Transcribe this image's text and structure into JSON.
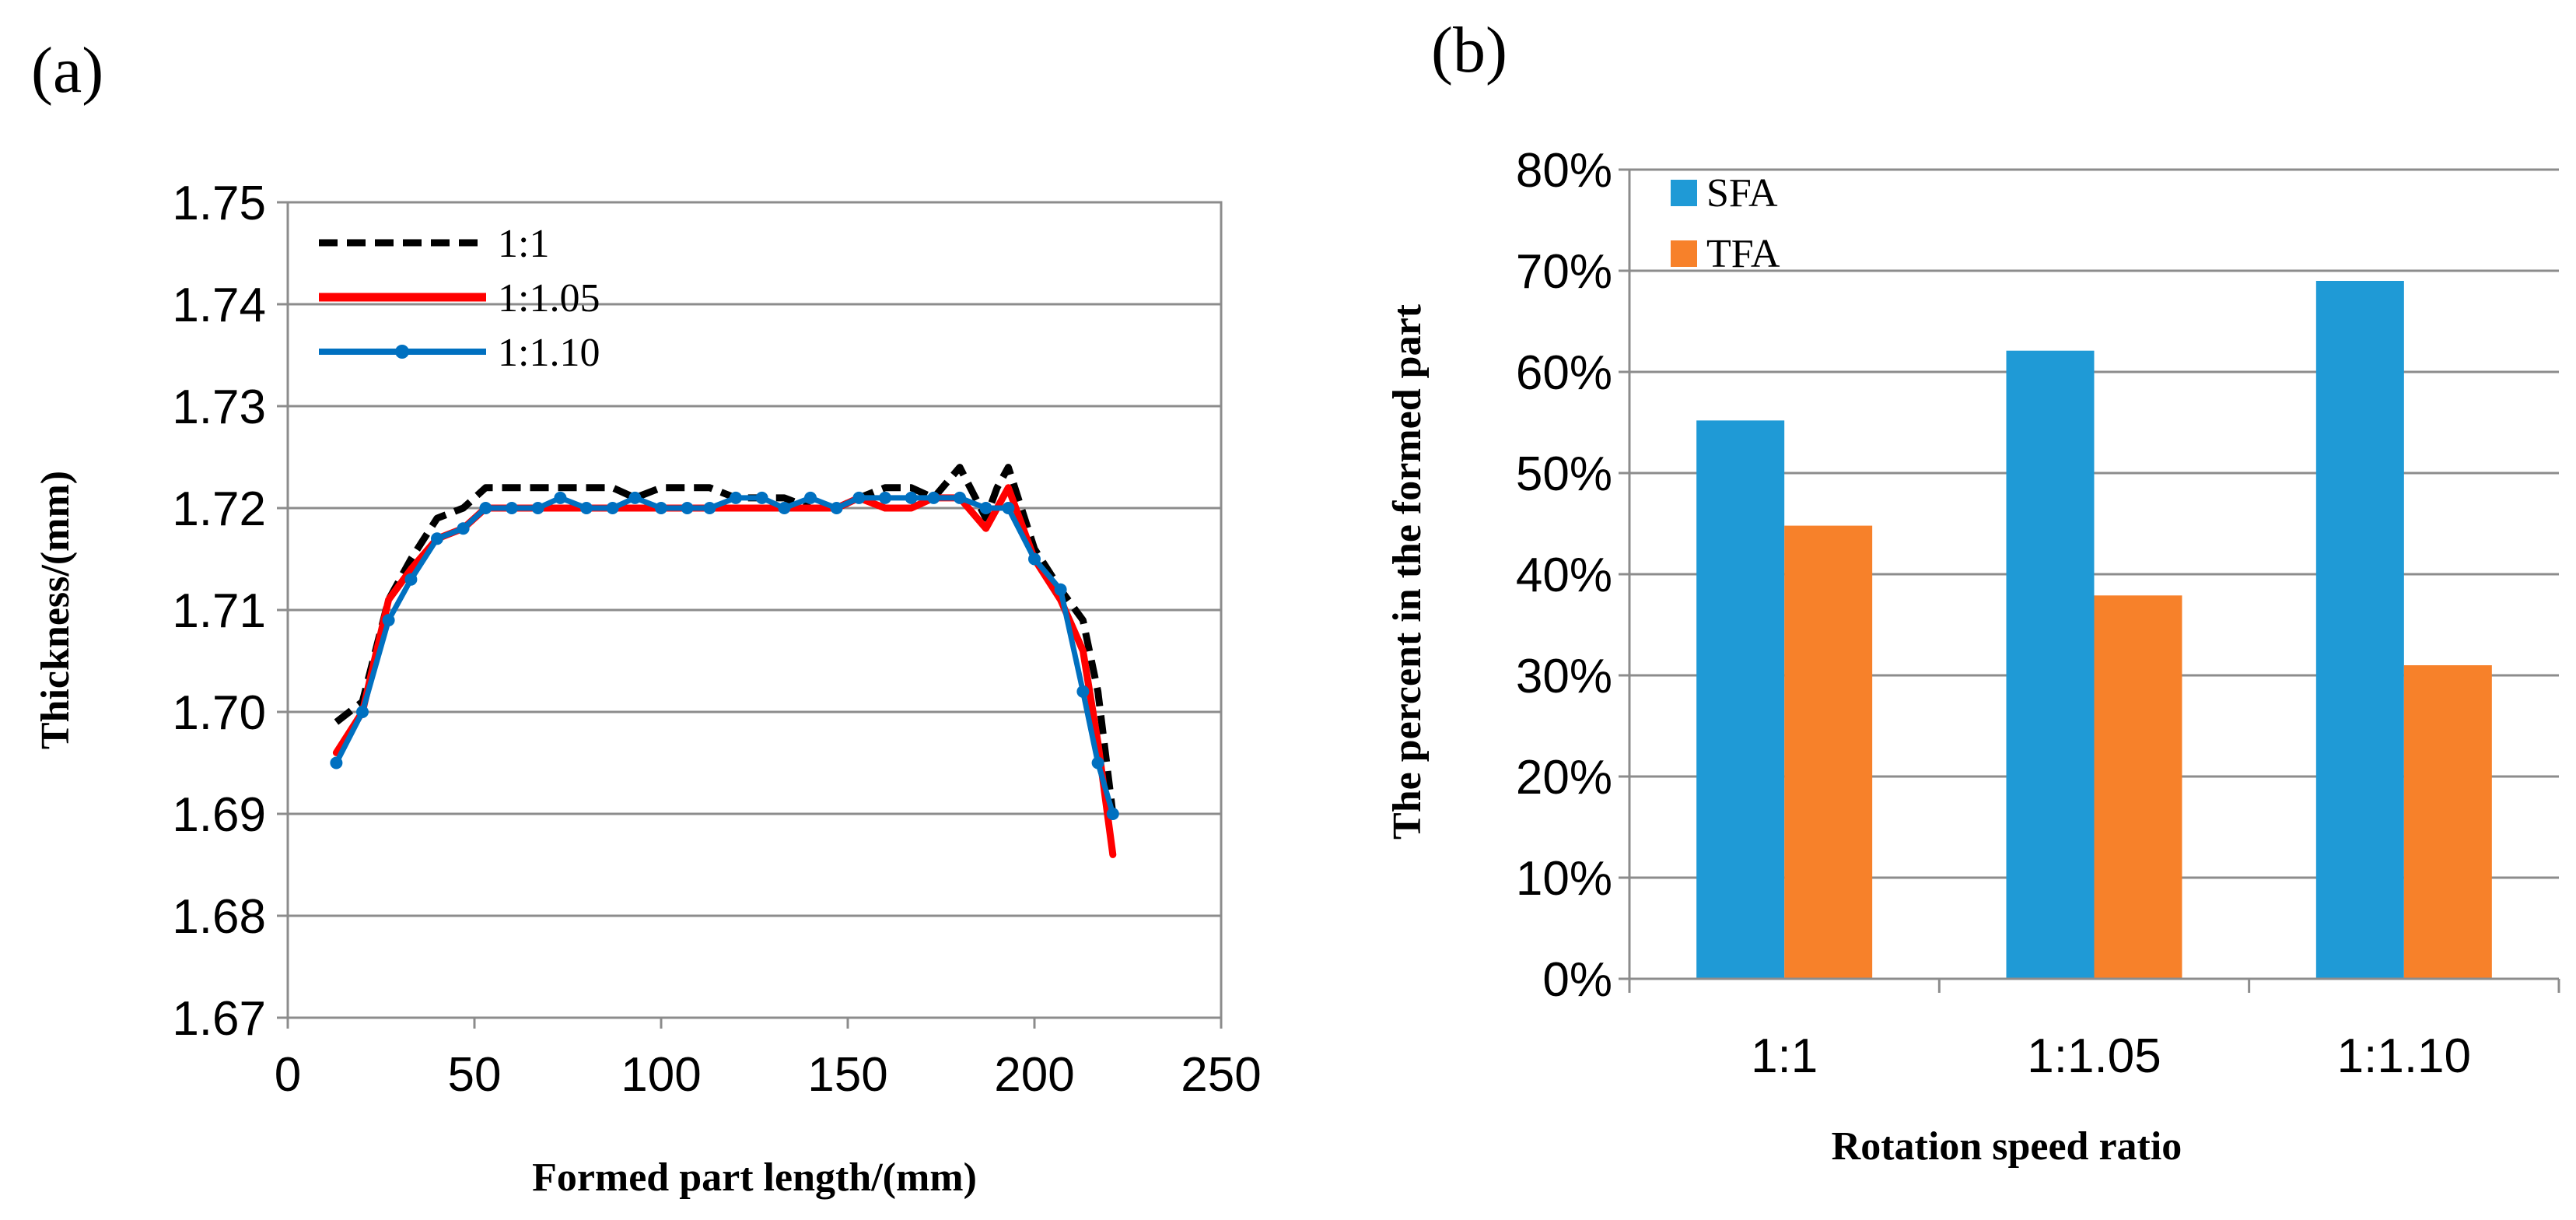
{
  "chart_data": [
    {
      "type": "line",
      "panel_label": "(a)",
      "xlabel": "Formed part length/(mm)",
      "ylabel": "Thickness/(mm)",
      "xlim": [
        0,
        250
      ],
      "ylim": [
        1.67,
        1.75
      ],
      "xticks": [
        "0",
        "50",
        "100",
        "150",
        "200",
        "250"
      ],
      "yticks": [
        "1.67",
        "1.68",
        "1.69",
        "1.70",
        "1.71",
        "1.72",
        "1.73",
        "1.74",
        "1.75"
      ],
      "grid": "horizontal",
      "legend_position": "top-left",
      "series": [
        {
          "name": "1:1",
          "color": "#000000",
          "style": "dashed",
          "x": [
            13,
            20,
            27,
            33,
            40,
            47,
            53,
            60,
            67,
            73,
            80,
            87,
            93,
            100,
            107,
            113,
            120,
            127,
            133,
            140,
            147,
            153,
            160,
            167,
            173,
            180,
            187,
            190,
            193,
            200,
            207,
            213,
            217,
            221
          ],
          "y": [
            1.699,
            1.701,
            1.711,
            1.715,
            1.719,
            1.72,
            1.722,
            1.722,
            1.722,
            1.722,
            1.722,
            1.722,
            1.721,
            1.722,
            1.722,
            1.722,
            1.721,
            1.721,
            1.721,
            1.72,
            1.72,
            1.721,
            1.722,
            1.722,
            1.721,
            1.724,
            1.719,
            1.722,
            1.724,
            1.716,
            1.712,
            1.709,
            1.702,
            1.69
          ]
        },
        {
          "name": "1:1.05",
          "color": "#ff0000",
          "style": "solid",
          "x": [
            13,
            20,
            27,
            33,
            40,
            47,
            53,
            60,
            67,
            73,
            80,
            87,
            93,
            100,
            107,
            113,
            120,
            127,
            133,
            140,
            147,
            153,
            160,
            167,
            173,
            180,
            187,
            193,
            200,
            207,
            213,
            217,
            221
          ],
          "y": [
            1.696,
            1.7,
            1.711,
            1.714,
            1.717,
            1.718,
            1.72,
            1.72,
            1.72,
            1.72,
            1.72,
            1.72,
            1.72,
            1.72,
            1.72,
            1.72,
            1.72,
            1.72,
            1.72,
            1.72,
            1.72,
            1.721,
            1.72,
            1.72,
            1.721,
            1.721,
            1.718,
            1.722,
            1.715,
            1.711,
            1.706,
            1.697,
            1.686
          ]
        },
        {
          "name": "1:1.10",
          "color": "#0070c0",
          "style": "solid-marker",
          "x": [
            13,
            20,
            27,
            33,
            40,
            47,
            53,
            60,
            67,
            73,
            80,
            87,
            93,
            100,
            107,
            113,
            120,
            127,
            133,
            140,
            147,
            153,
            160,
            167,
            173,
            180,
            187,
            193,
            200,
            207,
            213,
            217,
            221
          ],
          "y": [
            1.695,
            1.7,
            1.709,
            1.713,
            1.717,
            1.718,
            1.72,
            1.72,
            1.72,
            1.721,
            1.72,
            1.72,
            1.721,
            1.72,
            1.72,
            1.72,
            1.721,
            1.721,
            1.72,
            1.721,
            1.72,
            1.721,
            1.721,
            1.721,
            1.721,
            1.721,
            1.72,
            1.72,
            1.715,
            1.712,
            1.702,
            1.695,
            1.69
          ]
        }
      ]
    },
    {
      "type": "bar",
      "panel_label": "(b)",
      "xlabel": "Rotation speed ratio",
      "ylabel": "The percent in the formed part",
      "ylim": [
        0,
        80
      ],
      "yticks": [
        "0%",
        "10%",
        "20%",
        "30%",
        "40%",
        "50%",
        "60%",
        "70%",
        "80%"
      ],
      "grid": "horizontal",
      "legend_position": "top-left",
      "categories": [
        "1:1",
        "1:1.05",
        "1:1.10"
      ],
      "series": [
        {
          "name": "SFA",
          "color": "#1f9ad6",
          "values": [
            55.2,
            62.1,
            69
          ]
        },
        {
          "name": "TFA",
          "color": "#f7812a",
          "values": [
            44.8,
            37.9,
            31
          ]
        }
      ]
    }
  ]
}
